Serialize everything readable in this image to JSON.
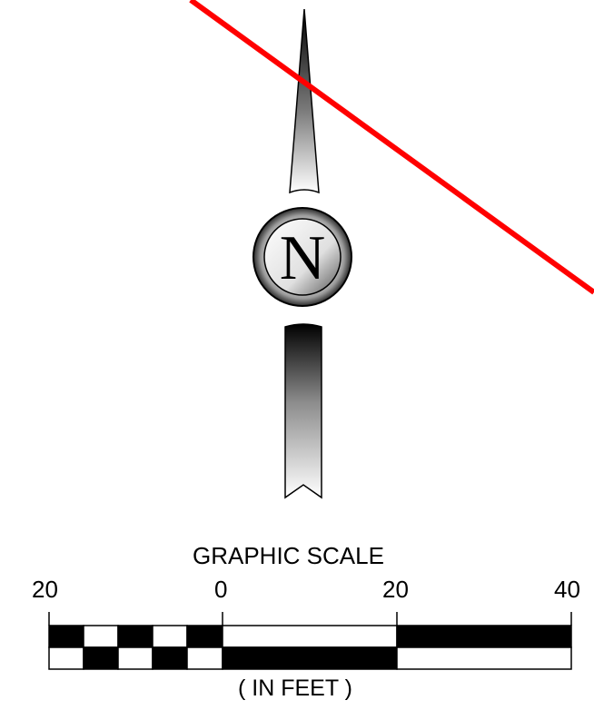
{
  "north_arrow": {
    "letter": "N"
  },
  "graphic_scale": {
    "title": "GRAPHIC SCALE",
    "labels": [
      "20",
      "0",
      "20",
      "40"
    ],
    "unit": "( IN FEET )"
  },
  "colors": {
    "line": "#ff0000",
    "ink": "#000000",
    "paper": "#ffffff"
  }
}
